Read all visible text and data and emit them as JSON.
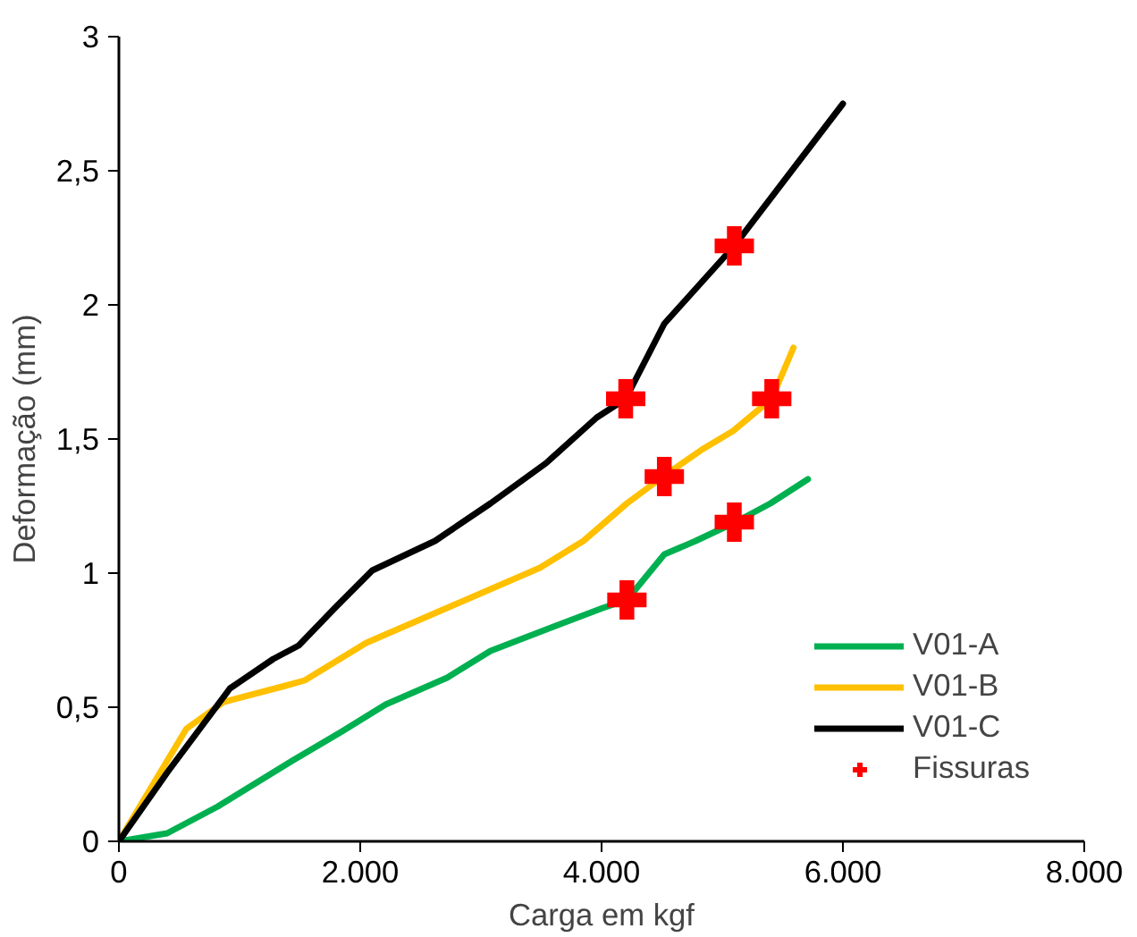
{
  "chart_data": {
    "type": "line",
    "xlabel": "Carga em kgf",
    "ylabel": "Deformação (mm)",
    "xlim": [
      0,
      8000
    ],
    "ylim": [
      0,
      3
    ],
    "xticks": [
      {
        "value": 0,
        "label": "0"
      },
      {
        "value": 2000,
        "label": "2.000"
      },
      {
        "value": 4000,
        "label": "4.000"
      },
      {
        "value": 6000,
        "label": "6.000"
      },
      {
        "value": 8000,
        "label": "8.000"
      }
    ],
    "yticks": [
      {
        "value": 0,
        "label": "0"
      },
      {
        "value": 0.5,
        "label": "0,5"
      },
      {
        "value": 1,
        "label": "1"
      },
      {
        "value": 1.5,
        "label": "1,5"
      },
      {
        "value": 2,
        "label": "2"
      },
      {
        "value": 2.5,
        "label": "2,5"
      },
      {
        "value": 3,
        "label": "3"
      }
    ],
    "grid": false,
    "legend": "bottom right",
    "line_style": "solid",
    "series": [
      {
        "name": "V01-A",
        "color": "#00b050",
        "x": [
          0,
          400,
          820,
          1435,
          1850,
          2210,
          2720,
          3080,
          3600,
          4010,
          4210,
          4520,
          4780,
          5110,
          5400,
          5710
        ],
        "values": [
          0,
          0.03,
          0.13,
          0.3,
          0.41,
          0.51,
          0.61,
          0.71,
          0.8,
          0.87,
          0.9,
          1.07,
          1.12,
          1.19,
          1.26,
          1.35
        ]
      },
      {
        "name": "V01-B",
        "color": "#ffc000",
        "x": [
          0,
          560,
          870,
          1380,
          1540,
          2050,
          2770,
          3490,
          3850,
          4210,
          4510,
          4830,
          5090,
          5410,
          5590
        ],
        "values": [
          0,
          0.42,
          0.52,
          0.58,
          0.6,
          0.74,
          0.88,
          1.02,
          1.12,
          1.26,
          1.36,
          1.46,
          1.53,
          1.65,
          1.84
        ]
      },
      {
        "name": "V01-C",
        "color": "#000000",
        "x": [
          0,
          406,
          920,
          1280,
          1490,
          1790,
          2100,
          2620,
          3080,
          3540,
          3960,
          4200,
          4520,
          5100,
          6000
        ],
        "values": [
          0,
          0.26,
          0.57,
          0.68,
          0.73,
          0.87,
          1.01,
          1.12,
          1.26,
          1.41,
          1.58,
          1.65,
          1.93,
          2.22,
          2.75
        ]
      },
      {
        "name": "Fissuras",
        "type": "scatter",
        "marker": "cross",
        "color": "#ff0000",
        "x": [
          4200,
          5100,
          4520,
          5410,
          4210,
          5100
        ],
        "values": [
          1.65,
          2.22,
          1.36,
          1.65,
          0.9,
          1.19
        ]
      }
    ]
  }
}
